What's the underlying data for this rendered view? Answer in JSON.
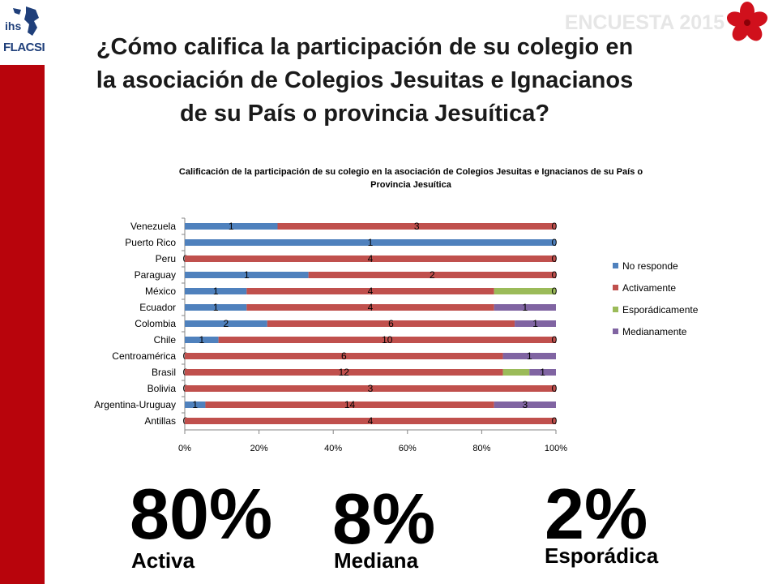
{
  "header": {
    "logo_text_1": "ihs",
    "logo_text_2": "FLACSI",
    "survey_label": "ENCUESTA 2015",
    "title_line_1": "¿Cómo califica la participación de su colegio en",
    "title_line_2": "la asociación de Colegios Jesuitas e Ignacianos",
    "title_line_3": "de su País o provincia Jesuítica?"
  },
  "colors": {
    "brand_red": "#b8040c",
    "logo_blue": "#1f3f7a"
  },
  "chart_data": {
    "type": "bar",
    "orientation": "horizontal",
    "stacking": "percent",
    "title_line_1": "Calificación de la participación de su colegio en la asociación de Colegios Jesuitas e Ignacianos de su País o",
    "title_line_2": "Provincia Jesuítica",
    "categories": [
      "Venezuela",
      "Puerto Rico",
      "Peru",
      "Paraguay",
      "México",
      "Ecuador",
      "Colombia",
      "Chile",
      "Centroamérica",
      "Brasil",
      "Bolivia",
      "Argentina-Uruguay",
      "Antillas"
    ],
    "series": [
      {
        "name": "No responde",
        "color": "#4f81bd",
        "values": [
          1,
          1,
          0,
          1,
          1,
          1,
          2,
          1,
          0,
          0,
          0,
          1,
          0
        ],
        "labels": [
          "1",
          "1",
          "0",
          "1",
          "1",
          "1",
          "2",
          "1",
          "0",
          "0",
          "0",
          "1",
          "0"
        ]
      },
      {
        "name": "Activamente",
        "color": "#c0504d",
        "values": [
          3,
          0,
          4,
          2,
          4,
          4,
          6,
          10,
          6,
          12,
          3,
          14,
          4
        ],
        "labels": [
          "3",
          "",
          "4",
          "2",
          "4",
          "4",
          "6",
          "10",
          "6",
          "12",
          "3",
          "14",
          "4"
        ]
      },
      {
        "name": "Esporádicamente",
        "color": "#9bbb59",
        "values": [
          0,
          0,
          0,
          0,
          1,
          0,
          0,
          0,
          0,
          1,
          0,
          0,
          0
        ],
        "labels": [
          "",
          "",
          "",
          "",
          "",
          "",
          "",
          "",
          "",
          "",
          "",
          "",
          ""
        ]
      },
      {
        "name": "Medianamente",
        "color": "#8064a2",
        "values": [
          0,
          0,
          0,
          0,
          0,
          1,
          1,
          0,
          1,
          1,
          0,
          3,
          0
        ],
        "labels": [
          "0",
          "0",
          "0",
          "0",
          "0",
          "1",
          "1",
          "0",
          "1",
          "1",
          "0",
          "3",
          "0"
        ]
      }
    ],
    "x_ticks": [
      "0%",
      "20%",
      "40%",
      "60%",
      "80%",
      "100%"
    ],
    "xlim": [
      0,
      100
    ],
    "grid": false,
    "legend_position": "right"
  },
  "summary": [
    {
      "value": "80%",
      "label": "Activa"
    },
    {
      "value": "8%",
      "label": "Mediana"
    },
    {
      "value": "2%",
      "label": "Esporádica"
    }
  ]
}
